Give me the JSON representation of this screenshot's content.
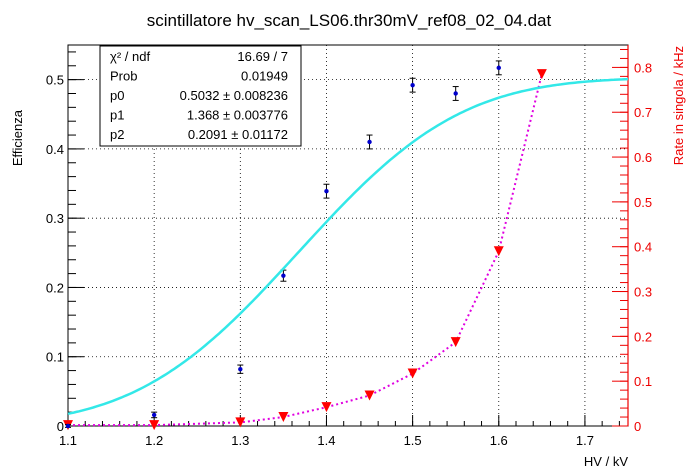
{
  "chart_data": {
    "type": "scatter",
    "title": "scintillatore hv_scan_LS06.thr30mV_ref08_02_04.dat",
    "xlabel": "HV / kV",
    "ylabel": "Efficienza",
    "y2label": "Rate in singola / kHz",
    "xlim": [
      1.1,
      1.75
    ],
    "ylim": [
      0,
      0.55
    ],
    "y2lim": [
      0,
      0.85
    ],
    "x_ticks": [
      "1.1",
      "1.2",
      "1.3",
      "1.4",
      "1.5",
      "1.6",
      "1.7"
    ],
    "y_ticks": [
      "0",
      "0.1",
      "0.2",
      "0.3",
      "0.4",
      "0.5"
    ],
    "y2_ticks": [
      "0",
      "0.1",
      "0.2",
      "0.3",
      "0.4",
      "0.5",
      "0.6",
      "0.7",
      "0.8"
    ],
    "grid": true,
    "series": [
      {
        "axis": "left",
        "color": "#0000cc",
        "x": [
          1.1,
          1.2,
          1.3,
          1.35,
          1.4,
          1.45,
          1.5,
          1.55,
          1.6
        ],
        "y": [
          0.0,
          0.016,
          0.082,
          0.217,
          0.339,
          0.41,
          0.492,
          0.48,
          0.517
        ],
        "yerr": [
          0.002,
          0.004,
          0.006,
          0.008,
          0.01,
          0.01,
          0.01,
          0.01,
          0.01
        ]
      },
      {
        "axis": "left",
        "type": "fit",
        "color": "#33e8e8",
        "function": "p0*(1+erf((x-p1)/p2))/2"
      },
      {
        "axis": "right",
        "color": "#ff0000",
        "line_color": "#e000e0",
        "x": [
          1.1,
          1.2,
          1.3,
          1.35,
          1.4,
          1.45,
          1.5,
          1.55,
          1.6,
          1.65
        ],
        "y": [
          0.002,
          0.002,
          0.008,
          0.02,
          0.042,
          0.068,
          0.117,
          0.187,
          0.39,
          0.785
        ]
      }
    ],
    "stats_box": {
      "rows": [
        {
          "label": "χ² / ndf",
          "value": "16.69 / 7"
        },
        {
          "label": "Prob",
          "value": "0.01949"
        },
        {
          "label": "p0",
          "value": "0.5032 ± 0.008236"
        },
        {
          "label": "p1",
          "value": "1.368 ± 0.003776"
        },
        {
          "label": "p2",
          "value": "0.2091 ± 0.01172"
        }
      ],
      "fit_params": {
        "p0": 0.5032,
        "p1": 1.368,
        "p2": 0.2091
      }
    }
  }
}
